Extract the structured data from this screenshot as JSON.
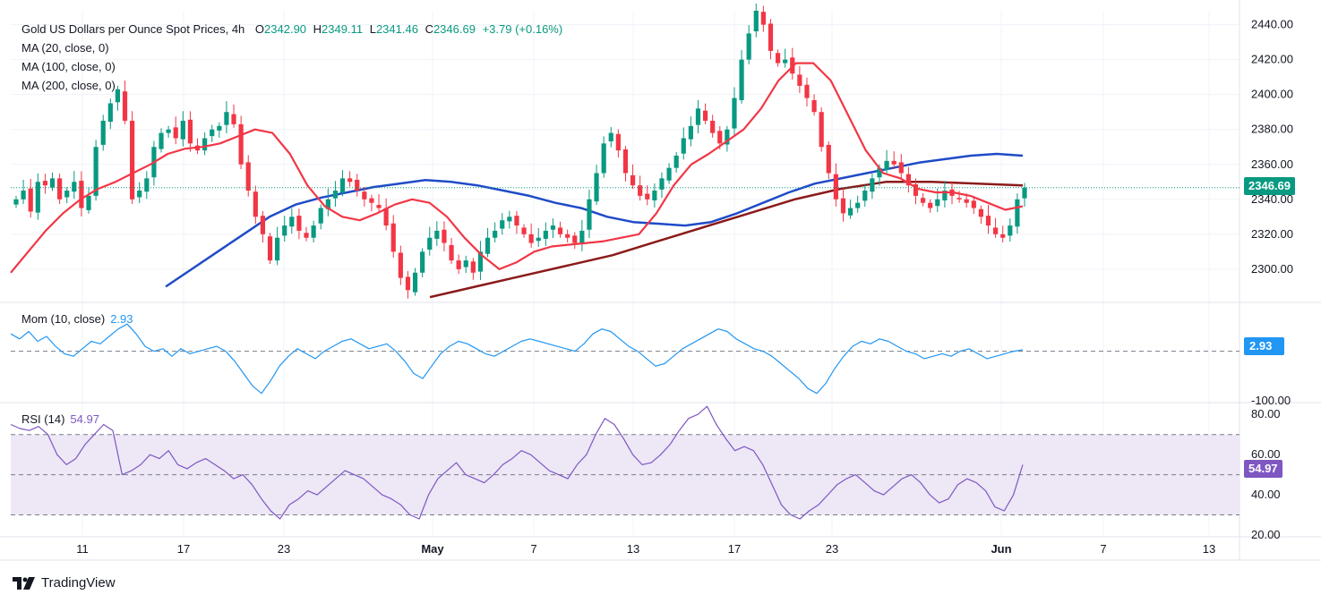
{
  "header": {
    "symbol": "Gold US Dollars per Ounce Spot Prices, 4h",
    "open_label": "O",
    "open": "2342.90",
    "high_label": "H",
    "high": "2349.11",
    "low_label": "L",
    "low": "2341.46",
    "close_label": "C",
    "close": "2346.69",
    "change": "+3.79 (+0.16%)"
  },
  "indicators": {
    "ma20": "MA (20, close, 0)",
    "ma100": "MA (100, close, 0)",
    "ma200": "MA (200, close, 0)",
    "mom_label": "Mom (10, close)",
    "mom_value": "2.93",
    "rsi_label": "RSI (14)",
    "rsi_value": "54.97"
  },
  "badges": {
    "price": "2346.69",
    "mom": "2.93",
    "rsi": "54.97"
  },
  "branding": {
    "name": "TradingView"
  },
  "colors": {
    "up": "#089981",
    "down": "#f23645",
    "ma20": "#f23645",
    "ma100": "#1f4bc7",
    "ma200": "#8b1a1a",
    "mom": "#2196f3",
    "rsi": "#7e57c2",
    "rsi_band": "#ede7f6"
  },
  "chart_data": [
    {
      "type": "candlestick",
      "title": "Gold US Dollars per Ounce Spot Prices, 4h",
      "price_axis": [
        "2300.00",
        "2320.00",
        "2340.00",
        "2360.00",
        "2380.00",
        "2400.00",
        "2420.00",
        "2440.00"
      ],
      "ylim": [
        2282,
        2448
      ],
      "x_ticks": [
        "11",
        "17",
        "23",
        "May",
        "7",
        "13",
        "17",
        "23",
        "Jun",
        "7",
        "13"
      ],
      "last_close": 2346.69,
      "close_path": [
        2340,
        2345,
        2333,
        2350,
        2348,
        2352,
        2340,
        2345,
        2350,
        2335,
        2342,
        2370,
        2385,
        2395,
        2403,
        2385,
        2340,
        2345,
        2352,
        2370,
        2378,
        2380,
        2375,
        2385,
        2372,
        2368,
        2375,
        2380,
        2382,
        2390,
        2383,
        2360,
        2345,
        2330,
        2320,
        2305,
        2318,
        2325,
        2330,
        2322,
        2318,
        2325,
        2335,
        2340,
        2345,
        2352,
        2350,
        2345,
        2340,
        2338,
        2335,
        2325,
        2310,
        2295,
        2288,
        2298,
        2310,
        2318,
        2322,
        2315,
        2305,
        2300,
        2305,
        2298,
        2310,
        2318,
        2322,
        2328,
        2330,
        2325,
        2320,
        2315,
        2318,
        2322,
        2325,
        2320,
        2318,
        2315,
        2322,
        2340,
        2355,
        2372,
        2378,
        2368,
        2355,
        2348,
        2342,
        2340,
        2345,
        2352,
        2358,
        2365,
        2375,
        2382,
        2392,
        2385,
        2378,
        2372,
        2380,
        2398,
        2420,
        2435,
        2448,
        2440,
        2425,
        2418,
        2420,
        2412,
        2405,
        2398,
        2390,
        2370,
        2355,
        2340,
        2332,
        2335,
        2338,
        2345,
        2352,
        2358,
        2362,
        2360,
        2355,
        2348,
        2342,
        2338,
        2335,
        2340,
        2345,
        2342,
        2340,
        2338,
        2335,
        2330,
        2325,
        2320,
        2318,
        2325,
        2340,
        2346.69
      ],
      "series": [
        {
          "name": "MA (20, close, 0)",
          "y": [
            2298,
            2310,
            2322,
            2332,
            2340,
            2346,
            2350,
            2355,
            2360,
            2366,
            2369,
            2370,
            2372,
            2376,
            2380,
            2378,
            2366,
            2348,
            2336,
            2330,
            2328,
            2332,
            2337,
            2340,
            2338,
            2330,
            2318,
            2308,
            2300,
            2304,
            2310,
            2313,
            2314,
            2315,
            2316,
            2318,
            2320,
            2332,
            2348,
            2360,
            2366,
            2373,
            2380,
            2392,
            2408,
            2418,
            2418,
            2408,
            2388,
            2368,
            2355,
            2352,
            2346,
            2344,
            2344,
            2342,
            2338,
            2334,
            2336
          ]
        },
        {
          "name": "MA (100, close, 0)",
          "y": [
            2290,
            2300,
            2310,
            2320,
            2330,
            2337,
            2341,
            2344,
            2347,
            2349,
            2351,
            2350,
            2348,
            2345,
            2342,
            2338,
            2335,
            2330,
            2327,
            2326,
            2325,
            2327,
            2332,
            2338,
            2344,
            2349,
            2352,
            2355,
            2358,
            2361,
            2363,
            2365,
            2366,
            2365
          ]
        },
        {
          "name": "MA (200, close, 0)",
          "y": [
            2284,
            2290,
            2296,
            2302,
            2308,
            2316,
            2324,
            2332,
            2340,
            2346,
            2350,
            2350,
            2349,
            2348
          ]
        }
      ]
    },
    {
      "type": "line",
      "title": "Mom (10, close)",
      "value_axis": [
        "-100.00"
      ],
      "ylim": [
        -100,
        95
      ],
      "last": 2.93,
      "y": [
        35,
        25,
        40,
        20,
        30,
        10,
        -5,
        -10,
        5,
        20,
        15,
        30,
        45,
        55,
        35,
        10,
        0,
        5,
        -10,
        5,
        -5,
        0,
        5,
        10,
        0,
        -20,
        -45,
        -70,
        -85,
        -60,
        -30,
        -10,
        5,
        -5,
        -15,
        0,
        10,
        20,
        25,
        15,
        5,
        10,
        15,
        0,
        -20,
        -45,
        -55,
        -30,
        -5,
        10,
        20,
        15,
        5,
        -5,
        -10,
        0,
        10,
        20,
        25,
        20,
        15,
        10,
        5,
        0,
        15,
        35,
        45,
        40,
        25,
        10,
        0,
        -15,
        -30,
        -25,
        -10,
        5,
        15,
        25,
        35,
        45,
        40,
        25,
        15,
        5,
        0,
        -10,
        -25,
        -40,
        -55,
        -75,
        -85,
        -65,
        -35,
        -10,
        10,
        20,
        15,
        25,
        20,
        10,
        0,
        -5,
        -15,
        -10,
        -5,
        -10,
        0,
        5,
        -5,
        -15,
        -10,
        -5,
        0,
        2.93
      ]
    },
    {
      "type": "line",
      "title": "RSI (14)",
      "value_axis": [
        "20.00",
        "40.00",
        "60.00",
        "80.00"
      ],
      "ylim": [
        20,
        85
      ],
      "band": [
        30,
        70
      ],
      "last": 54.97,
      "y": [
        75,
        73,
        72,
        74,
        70,
        60,
        55,
        58,
        65,
        70,
        75,
        72,
        50,
        52,
        55,
        60,
        58,
        62,
        55,
        53,
        56,
        58,
        55,
        52,
        48,
        50,
        45,
        38,
        32,
        28,
        35,
        38,
        42,
        40,
        44,
        48,
        52,
        50,
        48,
        44,
        40,
        38,
        35,
        30,
        28,
        40,
        48,
        52,
        56,
        50,
        48,
        46,
        50,
        55,
        58,
        62,
        60,
        56,
        52,
        50,
        48,
        55,
        60,
        70,
        78,
        75,
        68,
        60,
        55,
        56,
        60,
        65,
        72,
        78,
        80,
        84,
        75,
        68,
        62,
        64,
        62,
        55,
        45,
        35,
        30,
        28,
        32,
        35,
        40,
        45,
        48,
        50,
        46,
        42,
        40,
        44,
        48,
        50,
        46,
        40,
        36,
        38,
        45,
        48,
        46,
        42,
        34,
        32,
        40,
        54.97
      ]
    }
  ]
}
